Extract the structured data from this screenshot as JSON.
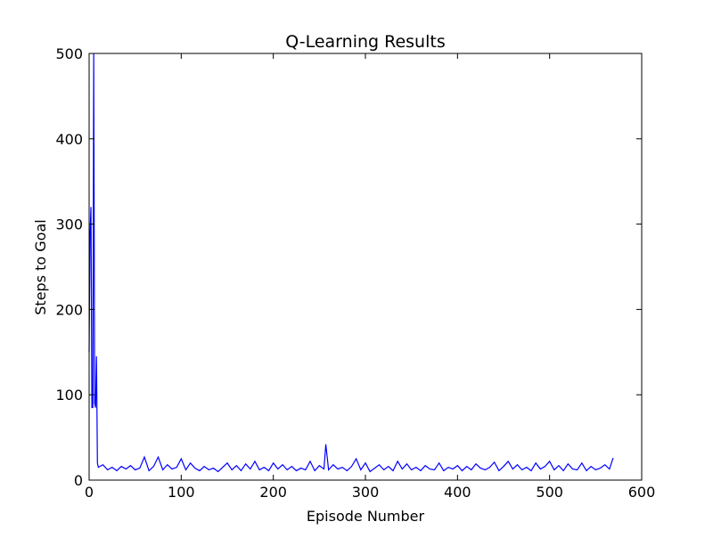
{
  "chart_data": {
    "type": "line",
    "title": "Q-Learning Results",
    "x_label": "Episode Number",
    "y_label": "Steps to Goal",
    "xlim": [
      0,
      600
    ],
    "xticks": [
      0,
      100,
      200,
      300,
      400,
      500,
      600
    ],
    "ylim": [
      0,
      500
    ],
    "yticks": [
      0,
      100,
      200,
      300,
      400,
      500
    ],
    "x": [
      0,
      1,
      2,
      3,
      4,
      5,
      6,
      7,
      8,
      9,
      10,
      15,
      20,
      25,
      30,
      35,
      40,
      45,
      50,
      55,
      60,
      65,
      70,
      75,
      80,
      85,
      90,
      95,
      100,
      105,
      110,
      115,
      120,
      125,
      130,
      135,
      140,
      145,
      150,
      155,
      160,
      165,
      170,
      175,
      180,
      185,
      190,
      195,
      200,
      205,
      210,
      215,
      220,
      225,
      230,
      235,
      240,
      245,
      250,
      255,
      257,
      260,
      265,
      270,
      275,
      280,
      285,
      290,
      295,
      300,
      305,
      310,
      315,
      320,
      325,
      330,
      335,
      340,
      345,
      350,
      355,
      360,
      365,
      370,
      375,
      380,
      385,
      390,
      395,
      400,
      405,
      410,
      415,
      420,
      425,
      430,
      435,
      440,
      445,
      450,
      455,
      460,
      465,
      470,
      475,
      480,
      485,
      490,
      495,
      500,
      505,
      510,
      515,
      520,
      525,
      530,
      535,
      540,
      545,
      550,
      555,
      560,
      565,
      569
    ],
    "series": [
      {
        "name": "Steps",
        "color": "#0000ff",
        "values": [
          150,
          290,
          320,
          85,
          85,
          500,
          90,
          85,
          145,
          20,
          15,
          18,
          12,
          15,
          11,
          16,
          13,
          17,
          12,
          14,
          27,
          11,
          16,
          27,
          12,
          18,
          13,
          15,
          25,
          12,
          20,
          14,
          11,
          16,
          12,
          14,
          10,
          15,
          20,
          12,
          17,
          11,
          19,
          13,
          22,
          12,
          15,
          11,
          20,
          13,
          18,
          12,
          16,
          11,
          14,
          12,
          22,
          11,
          17,
          13,
          42,
          12,
          18,
          13,
          15,
          11,
          16,
          25,
          12,
          20,
          10,
          14,
          18,
          12,
          16,
          11,
          22,
          13,
          19,
          12,
          15,
          11,
          17,
          13,
          12,
          20,
          11,
          15,
          13,
          17,
          11,
          16,
          12,
          19,
          14,
          12,
          15,
          21,
          11,
          16,
          22,
          13,
          18,
          12,
          15,
          11,
          20,
          13,
          16,
          22,
          12,
          17,
          11,
          19,
          13,
          12,
          20,
          11,
          16,
          12,
          14,
          18,
          13,
          26
        ]
      }
    ]
  }
}
